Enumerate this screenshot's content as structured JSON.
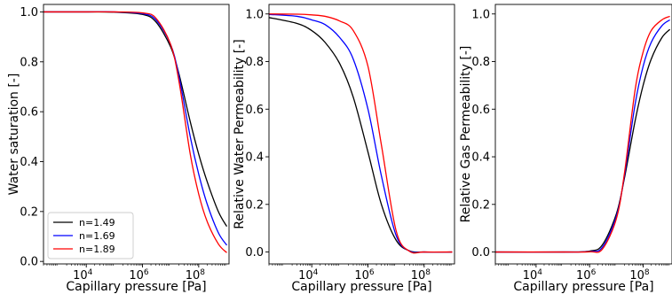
{
  "chart_data": [
    {
      "type": "line",
      "xlabel": "Capillary pressure [Pa]",
      "ylabel": "Water saturation [-]",
      "xscale": "log",
      "xlim": [
        300,
        1200000000
      ],
      "ylim": [
        -0.01,
        1.03
      ],
      "xticks": [
        10000,
        1000000,
        100000000
      ],
      "xtick_labels": [
        [
          "10",
          "4"
        ],
        [
          "10",
          "6"
        ],
        [
          "10",
          "8"
        ]
      ],
      "yticks": [
        0.0,
        0.2,
        0.4,
        0.6,
        0.8,
        1.0
      ],
      "ytick_labels": [
        "0.0",
        "0.2",
        "0.4",
        "0.6",
        "0.8",
        "1.0"
      ],
      "legend": "lower-left",
      "grid": false,
      "series": [
        {
          "name": "n=1.49",
          "color": "#000000",
          "x": [
            300,
            10000,
            100000,
            1000000,
            3000000,
            10000000,
            20000000,
            50000000,
            100000000,
            200000000,
            500000000,
            1000000000
          ],
          "y": [
            1.0,
            1.0,
            0.999,
            0.99,
            0.96,
            0.86,
            0.75,
            0.56,
            0.43,
            0.32,
            0.2,
            0.14
          ]
        },
        {
          "name": "n=1.69",
          "color": "#0000ff",
          "x": [
            300,
            10000,
            100000,
            1000000,
            3000000,
            10000000,
            20000000,
            50000000,
            100000000,
            200000000,
            500000000,
            1000000000
          ],
          "y": [
            1.0,
            1.0,
            1.0,
            0.993,
            0.968,
            0.87,
            0.74,
            0.5,
            0.35,
            0.23,
            0.115,
            0.065
          ]
        },
        {
          "name": "n=1.89",
          "color": "#ff0000",
          "x": [
            300,
            10000,
            100000,
            1000000,
            3000000,
            10000000,
            20000000,
            50000000,
            100000000,
            200000000,
            500000000,
            1000000000
          ],
          "y": [
            1.0,
            1.0,
            1.0,
            0.996,
            0.975,
            0.87,
            0.72,
            0.43,
            0.27,
            0.16,
            0.07,
            0.035
          ]
        }
      ]
    },
    {
      "type": "line",
      "xlabel": "Capillary pressure [Pa]",
      "ylabel": "Relative Water Permeability [-]",
      "xscale": "log",
      "xlim": [
        300,
        1200000000
      ],
      "ylim": [
        -0.05,
        1.04
      ],
      "xticks": [
        10000,
        1000000,
        100000000
      ],
      "xtick_labels": [
        [
          "10",
          "4"
        ],
        [
          "10",
          "6"
        ],
        [
          "10",
          "8"
        ]
      ],
      "yticks": [
        0.0,
        0.2,
        0.4,
        0.6,
        0.8,
        1.0
      ],
      "ytick_labels": [
        "0.0",
        "0.2",
        "0.4",
        "0.6",
        "0.8",
        "1.0"
      ],
      "grid": false,
      "series": [
        {
          "color": "#000000",
          "x": [
            300,
            3000,
            10000,
            30000,
            100000,
            300000,
            1000000,
            3000000,
            10000000,
            30000000,
            100000000,
            1000000000
          ],
          "y": [
            0.985,
            0.96,
            0.93,
            0.88,
            0.79,
            0.65,
            0.42,
            0.2,
            0.05,
            0.005,
            0.0,
            0.0
          ]
        },
        {
          "color": "#0000ff",
          "x": [
            300,
            3000,
            10000,
            30000,
            100000,
            300000,
            1000000,
            3000000,
            10000000,
            30000000,
            100000000,
            1000000000
          ],
          "y": [
            0.998,
            0.99,
            0.975,
            0.955,
            0.9,
            0.81,
            0.6,
            0.32,
            0.07,
            0.004,
            0.0,
            0.0
          ]
        },
        {
          "color": "#ff0000",
          "x": [
            300,
            3000,
            10000,
            30000,
            100000,
            300000,
            1000000,
            3000000,
            10000000,
            30000000,
            100000000,
            1000000000
          ],
          "y": [
            1.0,
            0.999,
            0.996,
            0.99,
            0.97,
            0.93,
            0.78,
            0.45,
            0.09,
            0.003,
            0.0,
            0.0
          ]
        }
      ]
    },
    {
      "type": "line",
      "xlabel": "Capillary pressure [Pa]",
      "ylabel": "Relative Gas Permeability [-]",
      "xscale": "log",
      "xlim": [
        300,
        1200000000
      ],
      "ylim": [
        -0.05,
        1.04
      ],
      "xticks": [
        10000,
        1000000,
        100000000
      ],
      "xtick_labels": [
        [
          "10",
          "4"
        ],
        [
          "10",
          "6"
        ],
        [
          "10",
          "8"
        ]
      ],
      "yticks": [
        0.0,
        0.2,
        0.4,
        0.6,
        0.8,
        1.0
      ],
      "ytick_labels": [
        "0.0",
        "0.2",
        "0.4",
        "0.6",
        "0.8",
        "1.0"
      ],
      "grid": false,
      "series": [
        {
          "color": "#000000",
          "x": [
            300,
            100000,
            1000000,
            3000000,
            10000000,
            20000000,
            50000000,
            100000000,
            200000000,
            500000000,
            1000000000
          ],
          "y": [
            0.0,
            0.0,
            0.004,
            0.03,
            0.16,
            0.31,
            0.55,
            0.7,
            0.81,
            0.9,
            0.935
          ]
        },
        {
          "color": "#0000ff",
          "x": [
            300,
            100000,
            1000000,
            3000000,
            10000000,
            20000000,
            50000000,
            100000000,
            200000000,
            500000000,
            1000000000
          ],
          "y": [
            0.0,
            0.0,
            0.002,
            0.02,
            0.15,
            0.32,
            0.62,
            0.78,
            0.88,
            0.95,
            0.975
          ]
        },
        {
          "color": "#ff0000",
          "x": [
            300,
            100000,
            1000000,
            3000000,
            10000000,
            20000000,
            50000000,
            100000000,
            200000000,
            500000000,
            1000000000
          ],
          "y": [
            0.0,
            0.0,
            0.001,
            0.012,
            0.14,
            0.33,
            0.68,
            0.84,
            0.93,
            0.975,
            0.99
          ]
        }
      ]
    }
  ]
}
